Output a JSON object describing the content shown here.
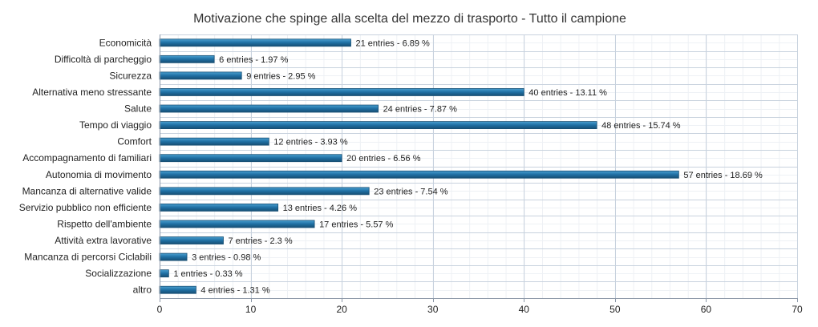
{
  "chart_data": {
    "type": "bar",
    "orientation": "horizontal",
    "title": "Motivazione che spinge alla scelta del mezzo di trasporto - Tutto il campione",
    "xlabel": "",
    "ylabel": "",
    "xlim": [
      0,
      70
    ],
    "x_ticks": [
      0,
      10,
      20,
      30,
      40,
      50,
      60,
      70
    ],
    "grid": true,
    "categories": [
      "Economicità",
      "Difficoltà di parcheggio",
      "Sicurezza",
      "Alternativa meno stressante",
      "Salute",
      "Tempo di viaggio",
      "Comfort",
      "Accompagnamento di familiari",
      "Autonomia di movimento",
      "Mancanza di alternative valide",
      "Servizio pubblico non efficiente",
      "Rispetto dell'ambiente",
      "Attività extra lavorative",
      "Mancanza di percorsi Ciclabili",
      "Socializzazione",
      "altro"
    ],
    "values": [
      21,
      6,
      9,
      40,
      24,
      48,
      12,
      20,
      57,
      23,
      13,
      17,
      7,
      3,
      1,
      4
    ],
    "data_labels": [
      "21 entries - 6.89 %",
      "6 entries - 1.97 %",
      "9 entries - 2.95 %",
      "40 entries - 13.11 %",
      "24 entries - 7.87 %",
      "48 entries - 15.74 %",
      "12 entries - 3.93 %",
      "20 entries - 6.56 %",
      "57 entries - 18.69 %",
      "23 entries - 7.54 %",
      "13 entries - 4.26 %",
      "17 entries - 5.57 %",
      "7 entries - 2.3 %",
      "3 entries - 0.98 %",
      "1 entries - 0.33 %",
      "4 entries - 1.31 %"
    ],
    "colors": {
      "bar": "#1f6fa3",
      "bar_light": "#4a9fd0",
      "bar_edge": "#174f74",
      "grid_major": "#c8d2de",
      "grid_minor": "#eef1f5"
    }
  }
}
